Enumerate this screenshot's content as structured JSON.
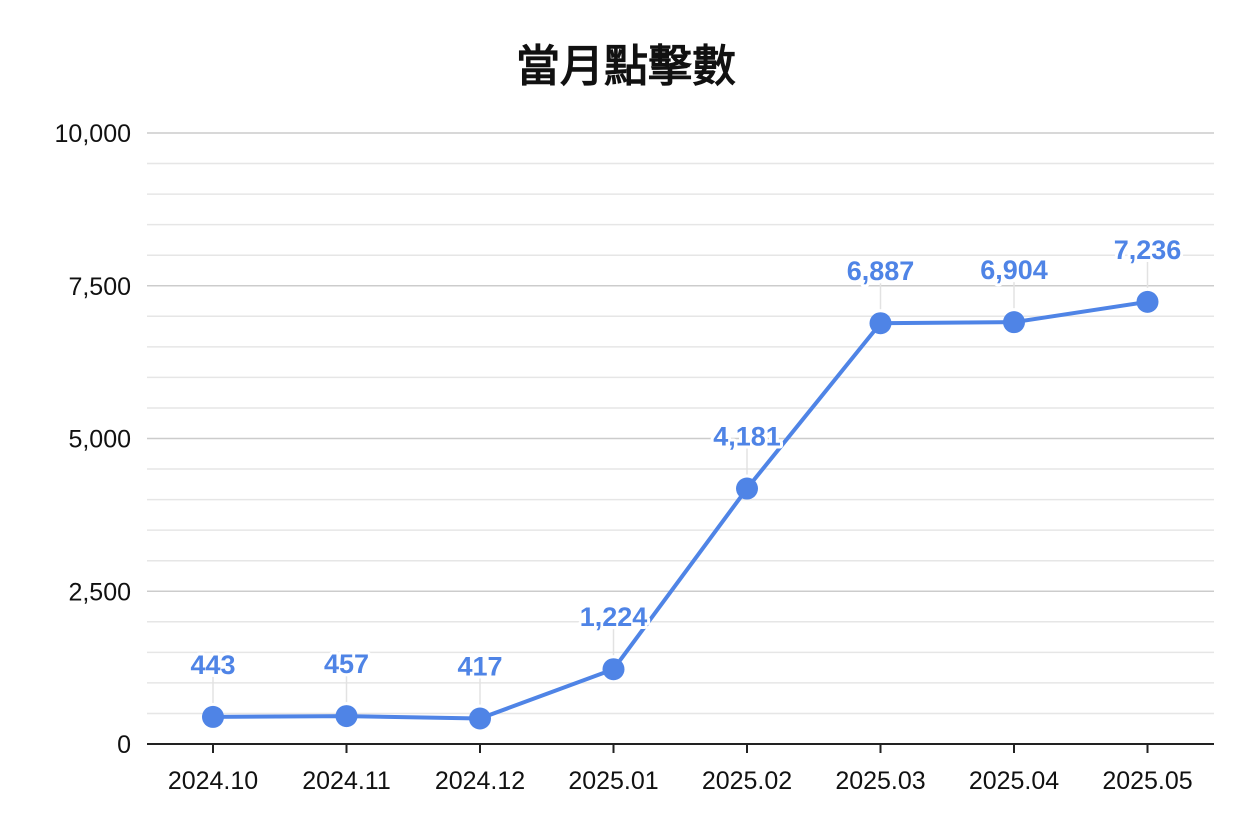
{
  "chart_data": {
    "type": "line",
    "title": "當月點擊數",
    "xlabel": "",
    "ylabel": "",
    "categories": [
      "2024.10",
      "2024.11",
      "2024.12",
      "2025.01",
      "2025.02",
      "2025.03",
      "2025.04",
      "2025.05"
    ],
    "series": [
      {
        "values": [
          443,
          457,
          417,
          1224,
          4181,
          6887,
          6904,
          7236
        ],
        "data_labels": [
          "443",
          "457",
          "417",
          "1,224",
          "4,181",
          "6,887",
          "6,904",
          "7,236"
        ]
      }
    ],
    "ylim": [
      0,
      10000
    ],
    "y_ticks": [
      0,
      2500,
      5000,
      7500,
      10000
    ],
    "y_tick_labels": [
      "0",
      "2,500",
      "5,000",
      "7,500",
      "10,000"
    ],
    "grid": true,
    "minor_grid": true,
    "legend": "none",
    "colors": {
      "series": "#4f84e6",
      "grid_major": "#cccccc",
      "grid_minor": "#e6e6e6",
      "axis": "#222222",
      "text": "#111111"
    }
  }
}
